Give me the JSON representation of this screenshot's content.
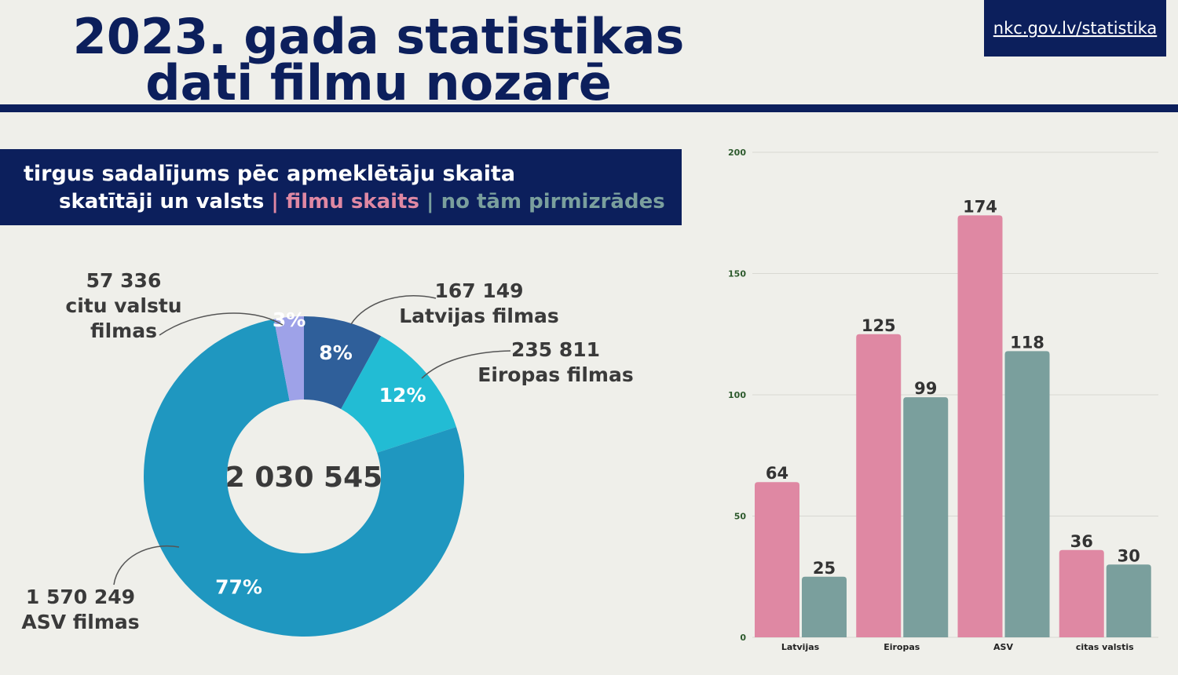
{
  "header": {
    "title_lines": [
      "2023. gada statistikas",
      "dati filmu nozarē"
    ],
    "link": "nkc.gov.lv/statistika"
  },
  "chart_data": [
    {
      "type": "donut",
      "title": "tirgus sadalījums pēc apmeklētāju skaita",
      "categories": [
        "Latvijas filmas",
        "Eiropas filmas",
        "ASV filmas",
        "citu valstu filmas"
      ],
      "values": [
        8,
        12,
        77,
        3
      ],
      "value_labels": [
        "8%",
        "12%",
        "77%",
        "3%"
      ],
      "counts": [
        167149,
        235811,
        1570249,
        57336
      ],
      "count_labels": [
        "167 149",
        "235 811",
        "1 570 249",
        "57 336"
      ],
      "colors": [
        "#2f5f9a",
        "#22bcd4",
        "#1f97c0",
        "#9ea2e8"
      ],
      "total": {
        "value": 2030545,
        "label": "2 030 545"
      }
    },
    {
      "type": "bar",
      "legend_prefix": "skatītāji un valsts",
      "legend_separator": "|",
      "categories": [
        "Latvijas",
        "Eiropas",
        "ASV",
        "citas valstis"
      ],
      "series": [
        {
          "name": "filmu skaits",
          "color": "#df88a3",
          "values": [
            64,
            125,
            174,
            36
          ]
        },
        {
          "name": "no tām pirmizrādes",
          "color": "#7a9f9d",
          "values": [
            25,
            99,
            118,
            30
          ]
        }
      ],
      "ylim": [
        0,
        200
      ],
      "yticks": [
        0,
        50,
        100,
        150,
        200
      ],
      "grid": true
    }
  ]
}
